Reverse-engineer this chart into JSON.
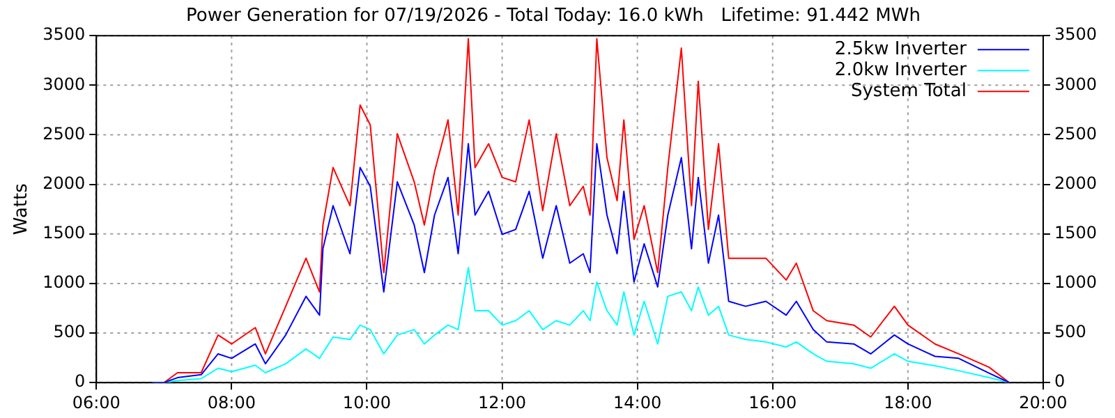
{
  "chart_data": {
    "type": "line",
    "title": "Power Generation for 07/19/2026 - Total Today: 16.0 kWh   Lifetime: 91.442 MWh",
    "ylabel": "Watts",
    "x": [
      6.83,
      7.0,
      7.2,
      7.55,
      7.8,
      8.0,
      8.35,
      8.5,
      8.8,
      9.1,
      9.3,
      9.35,
      9.5,
      9.75,
      9.9,
      10.05,
      10.25,
      10.45,
      10.7,
      10.85,
      11.0,
      11.2,
      11.35,
      11.5,
      11.6,
      11.8,
      12.0,
      12.2,
      12.4,
      12.6,
      12.8,
      13.0,
      13.2,
      13.3,
      13.4,
      13.55,
      13.7,
      13.8,
      13.95,
      14.1,
      14.3,
      14.45,
      14.65,
      14.8,
      14.9,
      15.05,
      15.2,
      15.35,
      15.6,
      15.9,
      16.2,
      16.35,
      16.6,
      16.8,
      17.2,
      17.45,
      17.8,
      18.0,
      18.4,
      18.75,
      19.2,
      19.5
    ],
    "series": [
      {
        "name": "2.5kw Inverter",
        "color": "#0000ff",
        "values": [
          0,
          0,
          50,
          80,
          290,
          245,
          390,
          190,
          480,
          870,
          680,
          1350,
          1785,
          1300,
          2170,
          1980,
          915,
          2025,
          1590,
          1110,
          1690,
          2070,
          1300,
          2410,
          1690,
          1930,
          1495,
          1545,
          1930,
          1255,
          1785,
          1205,
          1300,
          1110,
          2410,
          1690,
          1300,
          1930,
          1015,
          1400,
          965,
          1690,
          2270,
          1350,
          2070,
          1205,
          1690,
          820,
          770,
          820,
          680,
          820,
          535,
          410,
          390,
          290,
          480,
          390,
          265,
          245,
          95,
          0
        ]
      },
      {
        "name": "2.0kw Inverter",
        "color": "#00ffff",
        "values": [
          0,
          0,
          20,
          40,
          145,
          110,
          175,
          100,
          190,
          340,
          245,
          300,
          460,
          435,
          580,
          535,
          290,
          480,
          535,
          390,
          480,
          580,
          535,
          1160,
          725,
          725,
          580,
          625,
          725,
          535,
          625,
          580,
          725,
          625,
          1015,
          725,
          580,
          915,
          480,
          820,
          390,
          870,
          915,
          725,
          965,
          680,
          770,
          480,
          435,
          410,
          360,
          410,
          290,
          215,
          190,
          145,
          290,
          215,
          170,
          120,
          50,
          0
        ]
      },
      {
        "name": "System Total",
        "color": "#ff0000",
        "values": [
          0,
          0,
          100,
          100,
          480,
          390,
          555,
          290,
          770,
          1255,
          915,
          1590,
          2170,
          1785,
          2800,
          2600,
          1110,
          2510,
          2025,
          1590,
          2125,
          2650,
          1690,
          3470,
          2170,
          2410,
          2070,
          2025,
          2650,
          1735,
          2510,
          1785,
          1980,
          1690,
          3470,
          2270,
          1835,
          2650,
          1445,
          1785,
          1110,
          2170,
          3375,
          1785,
          3040,
          1545,
          2410,
          1255,
          1255,
          1255,
          1035,
          1205,
          725,
          625,
          580,
          460,
          770,
          580,
          390,
          290,
          155,
          0
        ]
      }
    ],
    "xlim": [
      6,
      20
    ],
    "xticks": [
      {
        "value": 6,
        "label": "06:00"
      },
      {
        "value": 8,
        "label": "08:00"
      },
      {
        "value": 10,
        "label": "10:00"
      },
      {
        "value": 12,
        "label": "12:00"
      },
      {
        "value": 14,
        "label": "14:00"
      },
      {
        "value": 16,
        "label": "16:00"
      },
      {
        "value": 18,
        "label": "18:00"
      },
      {
        "value": 20,
        "label": "20:00"
      }
    ],
    "ylim": [
      0,
      3500
    ],
    "yticks": [
      0,
      500,
      1000,
      1500,
      2000,
      2500,
      3000,
      3500
    ],
    "y2lim": [
      0,
      3500
    ],
    "y2ticks": [
      0,
      500,
      1000,
      1500,
      2000,
      2500,
      3000,
      3500
    ],
    "grid": true,
    "legend": "top right",
    "marker": "none",
    "line_style": "solid"
  }
}
